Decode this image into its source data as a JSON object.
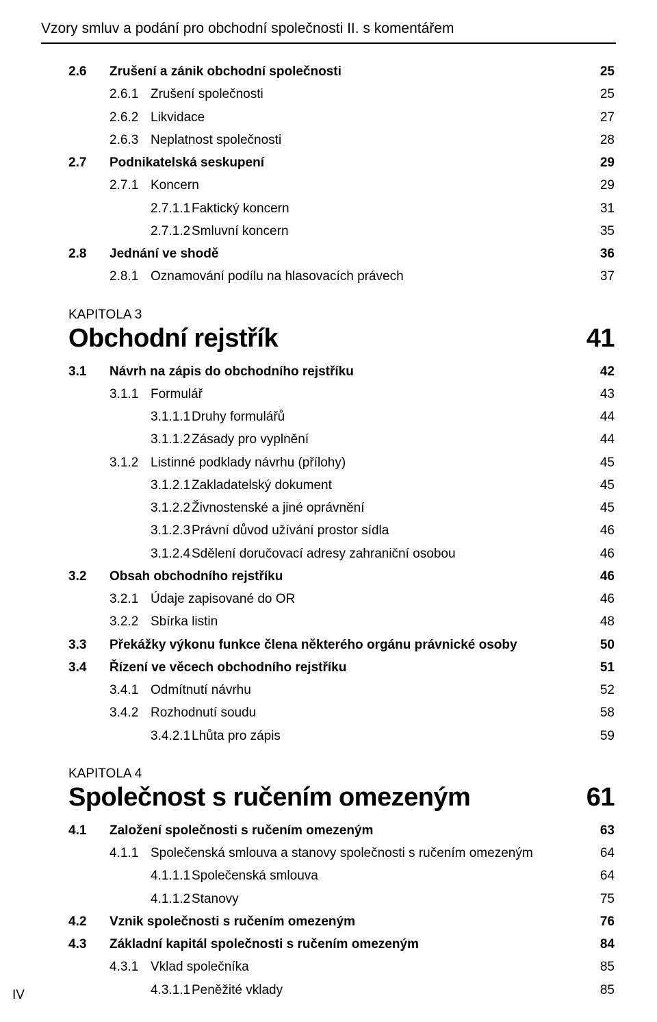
{
  "header_title": "Vzory smluv a podání pro obchodní společnosti II. s komentářem",
  "footer_page": "IV",
  "sections": [
    {
      "type": "entry",
      "level": 1,
      "num": "2.6",
      "title": "Zrušení a zánik obchodní společnosti",
      "page": "25"
    },
    {
      "type": "entry",
      "level": 2,
      "num": "2.6.1",
      "title": "Zrušení společnosti",
      "page": "25"
    },
    {
      "type": "entry",
      "level": 2,
      "num": "2.6.2",
      "title": "Likvidace",
      "page": "27"
    },
    {
      "type": "entry",
      "level": 2,
      "num": "2.6.3",
      "title": "Neplatnost společnosti",
      "page": "28"
    },
    {
      "type": "entry",
      "level": 1,
      "num": "2.7",
      "title": "Podnikatelská seskupení",
      "page": "29"
    },
    {
      "type": "entry",
      "level": 2,
      "num": "2.7.1",
      "title": "Koncern",
      "page": "29"
    },
    {
      "type": "entry",
      "level": 3,
      "num": "2.7.1.1",
      "title": "Faktický koncern",
      "page": "31"
    },
    {
      "type": "entry",
      "level": 3,
      "num": "2.7.1.2",
      "title": "Smluvní koncern",
      "page": "35"
    },
    {
      "type": "entry",
      "level": 1,
      "num": "2.8",
      "title": "Jednání ve shodě",
      "page": "36"
    },
    {
      "type": "entry",
      "level": 2,
      "num": "2.8.1",
      "title": "Oznamování podílu na hlasovacích právech",
      "page": "37"
    },
    {
      "type": "chapter",
      "label": "KAPITOLA 3",
      "title": "Obchodní rejstřík",
      "page": "41"
    },
    {
      "type": "entry",
      "level": 1,
      "num": "3.1",
      "title": "Návrh na zápis do obchodního rejstříku",
      "page": "42"
    },
    {
      "type": "entry",
      "level": 2,
      "num": "3.1.1",
      "title": "Formulář",
      "page": "43"
    },
    {
      "type": "entry",
      "level": 3,
      "num": "3.1.1.1",
      "title": "Druhy formulářů",
      "page": "44"
    },
    {
      "type": "entry",
      "level": 3,
      "num": "3.1.1.2",
      "title": "Zásady pro vyplnění",
      "page": "44"
    },
    {
      "type": "entry",
      "level": 2,
      "num": "3.1.2",
      "title": "Listinné podklady návrhu (přílohy)",
      "page": "45"
    },
    {
      "type": "entry",
      "level": 3,
      "num": "3.1.2.1",
      "title": "Zakladatelský dokument",
      "page": "45"
    },
    {
      "type": "entry",
      "level": 3,
      "num": "3.1.2.2",
      "title": "Živnostenské a jiné oprávnění",
      "page": "45"
    },
    {
      "type": "entry",
      "level": 3,
      "num": "3.1.2.3",
      "title": "Právní důvod užívání prostor sídla",
      "page": "46"
    },
    {
      "type": "entry",
      "level": 3,
      "num": "3.1.2.4",
      "title": "Sdělení doručovací adresy zahraniční osobou",
      "page": "46"
    },
    {
      "type": "entry",
      "level": 1,
      "num": "3.2",
      "title": "Obsah obchodního rejstříku",
      "page": "46"
    },
    {
      "type": "entry",
      "level": 2,
      "num": "3.2.1",
      "title": "Údaje zapisované do OR",
      "page": "46"
    },
    {
      "type": "entry",
      "level": 2,
      "num": "3.2.2",
      "title": "Sbírka listin",
      "page": "48"
    },
    {
      "type": "entry",
      "level": 1,
      "num": "3.3",
      "title": "Překážky výkonu funkce člena některého orgánu právnické osoby",
      "page": "50"
    },
    {
      "type": "entry",
      "level": 1,
      "num": "3.4",
      "title": "Řízení ve věcech obchodního rejstříku",
      "page": "51"
    },
    {
      "type": "entry",
      "level": 2,
      "num": "3.4.1",
      "title": "Odmítnutí návrhu",
      "page": "52"
    },
    {
      "type": "entry",
      "level": 2,
      "num": "3.4.2",
      "title": "Rozhodnutí soudu",
      "page": "58"
    },
    {
      "type": "entry",
      "level": 3,
      "num": "3.4.2.1",
      "title": "Lhůta pro zápis",
      "page": "59"
    },
    {
      "type": "chapter",
      "label": "KAPITOLA 4",
      "title": "Společnost s ručením omezeným",
      "page": "61"
    },
    {
      "type": "entry",
      "level": 1,
      "num": "4.1",
      "title": "Založení společnosti s  ručením omezeným",
      "page": "63"
    },
    {
      "type": "entry",
      "level": 2,
      "num": "4.1.1",
      "title": "Společenská smlouva a stanovy společnosti s  ručením omezeným",
      "page": "64"
    },
    {
      "type": "entry",
      "level": 3,
      "num": "4.1.1.1",
      "title": "Společenská smlouva",
      "page": "64"
    },
    {
      "type": "entry",
      "level": 3,
      "num": "4.1.1.2",
      "title": "Stanovy",
      "page": "75"
    },
    {
      "type": "entry",
      "level": 1,
      "num": "4.2",
      "title": "Vznik společnosti s ručením omezeným",
      "page": "76"
    },
    {
      "type": "entry",
      "level": 1,
      "num": "4.3",
      "title": "Základní kapitál společnosti s  ručením omezeným",
      "page": "84"
    },
    {
      "type": "entry",
      "level": 2,
      "num": "4.3.1",
      "title": "Vklad společníka",
      "page": "85"
    },
    {
      "type": "entry",
      "level": 3,
      "num": "4.3.1.1",
      "title": "Peněžité vklady",
      "page": "85"
    }
  ]
}
